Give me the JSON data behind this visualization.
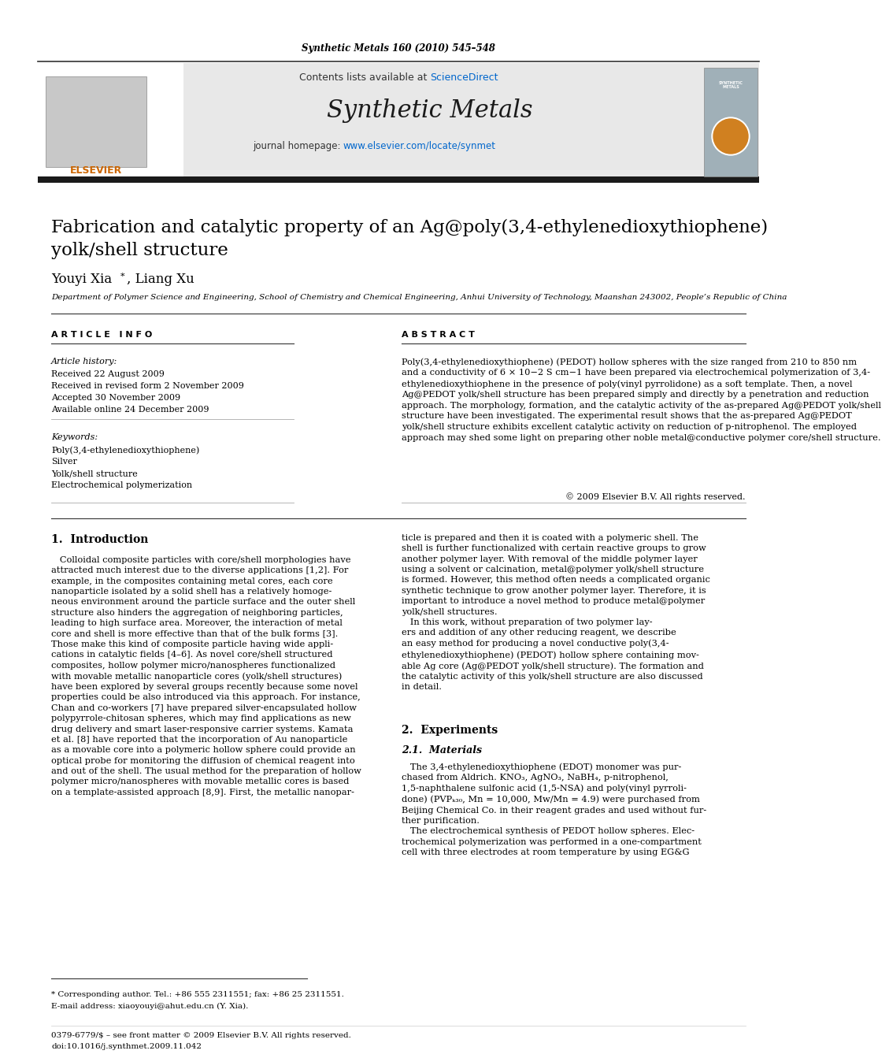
{
  "journal_header": "Synthetic Metals 160 (2010) 545–548",
  "contents_text": "Contents lists available at ",
  "sciencedirect_text": "ScienceDirect",
  "journal_name": "Synthetic Metals",
  "journal_homepage_text": "journal homepage: ",
  "journal_url": "www.elsevier.com/locate/synmet",
  "title": "Fabrication and catalytic property of an Ag@poly(3,4-ethylenedioxythiophene)\nyolk/shell structure",
  "affiliation": "Department of Polymer Science and Engineering, School of Chemistry and Chemical Engineering, Anhui University of Technology, Maanshan 243002, People’s Republic of China",
  "article_info_header": "A R T I C L E   I N F O",
  "article_history_label": "Article history:",
  "received_label": "Received 22 August 2009",
  "received_revised": "Received in revised form 2 November 2009",
  "accepted": "Accepted 30 November 2009",
  "available": "Available online 24 December 2009",
  "keywords_label": "Keywords:",
  "keyword1": "Poly(3,4-ethylenedioxythiophene)",
  "keyword2": "Silver",
  "keyword3": "Yolk/shell structure",
  "keyword4": "Electrochemical polymerization",
  "copyright": "© 2009 Elsevier B.V. All rights reserved.",
  "abstract_header": "A B S T R A C T",
  "abstract_text": "Poly(3,4-ethylenedioxythiophene) (PEDOT) hollow spheres with the size ranged from 210 to 850 nm\nand a conductivity of 6 × 10−2 S cm−1 have been prepared via electrochemical polymerization of 3,4-\nethylenedioxythiophene in the presence of poly(vinyl pyrrolidone) as a soft template. Then, a novel\nAg@PEDOT yolk/shell structure has been prepared simply and directly by a penetration and reduction\napproach. The morphology, formation, and the catalytic activity of the as-prepared Ag@PEDOT yolk/shell\nstructure have been investigated. The experimental result shows that the as-prepared Ag@PEDOT\nyolk/shell structure exhibits excellent catalytic activity on reduction of p-nitrophenol. The employed\napproach may shed some light on preparing other noble metal@conductive polymer core/shell structure.",
  "section1_header": "1.  Introduction",
  "intro_col1": "   Colloidal composite particles with core/shell morphologies have\nattracted much interest due to the diverse applications [1,2]. For\nexample, in the composites containing metal cores, each core\nnanoparticle isolated by a solid shell has a relatively homoge-\nneous environment around the particle surface and the outer shell\nstructure also hinders the aggregation of neighboring particles,\nleading to high surface area. Moreover, the interaction of metal\ncore and shell is more effective than that of the bulk forms [3].\nThose make this kind of composite particle having wide appli-\ncations in catalytic fields [4–6]. As novel core/shell structured\ncomposites, hollow polymer micro/nanospheres functionalized\nwith movable metallic nanoparticle cores (yolk/shell structures)\nhave been explored by several groups recently because some novel\nproperties could be also introduced via this approach. For instance,\nChan and co-workers [7] have prepared silver-encapsulated hollow\npolypyrrole-chitosan spheres, which may find applications as new\ndrug delivery and smart laser-responsive carrier systems. Kamata\net al. [8] have reported that the incorporation of Au nanoparticle\nas a movable core into a polymeric hollow sphere could provide an\noptical probe for monitoring the diffusion of chemical reagent into\nand out of the shell. The usual method for the preparation of hollow\npolymer micro/nanospheres with movable metallic cores is based\non a template-assisted approach [8,9]. First, the metallic nanopar-",
  "intro_col2": "ticle is prepared and then it is coated with a polymeric shell. The\nshell is further functionalized with certain reactive groups to grow\nanother polymer layer. With removal of the middle polymer layer\nusing a solvent or calcination, metal@polymer yolk/shell structure\nis formed. However, this method often needs a complicated organic\nsynthetic technique to grow another polymer layer. Therefore, it is\nimportant to introduce a novel method to produce metal@polymer\nyolk/shell structures.\n   In this work, without preparation of two polymer lay-\ners and addition of any other reducing reagent, we describe\nan easy method for producing a novel conductive poly(3,4-\nethylenedioxythiophene) (PEDOT) hollow sphere containing mov-\nable Ag core (Ag@PEDOT yolk/shell structure). The formation and\nthe catalytic activity of this yolk/shell structure are also discussed\nin detail.",
  "section2_header": "2.  Experiments",
  "section21_header": "2.1.  Materials",
  "materials_text": "   The 3,4-ethylenedioxythiophene (EDOT) monomer was pur-\nchased from Aldrich. KNO₃, AgNO₃, NaBH₄, p-nitrophenol,\n1,5-naphthalene sulfonic acid (1,5-NSA) and poly(vinyl pyrroli-\ndone) (PVPₖ₃₀, Mn = 10,000, Mw/Mn = 4.9) were purchased from\nBeijing Chemical Co. in their reagent grades and used without fur-\nther purification.\n   The electrochemical synthesis of PEDOT hollow spheres. Elec-\ntrochemical polymerization was performed in a one-compartment\ncell with three electrodes at room temperature by using EG&G",
  "footnote_star": "* Corresponding author. Tel.: +86 555 2311551; fax: +86 25 2311551.",
  "footnote_email": "E-mail address: xiaoyouyi@ahut.edu.cn (Y. Xia).",
  "footnote_issn": "0379-6779/$ – see front matter © 2009 Elsevier B.V. All rights reserved.",
  "footnote_doi": "doi:10.1016/j.synthmet.2009.11.042",
  "bg_color": "#ffffff",
  "header_bg": "#e8e8e8",
  "dark_line_color": "#1a1a1a",
  "blue_color": "#0066cc",
  "orange_color": "#cc6600",
  "text_color": "#000000",
  "link_color": "#0000ff"
}
